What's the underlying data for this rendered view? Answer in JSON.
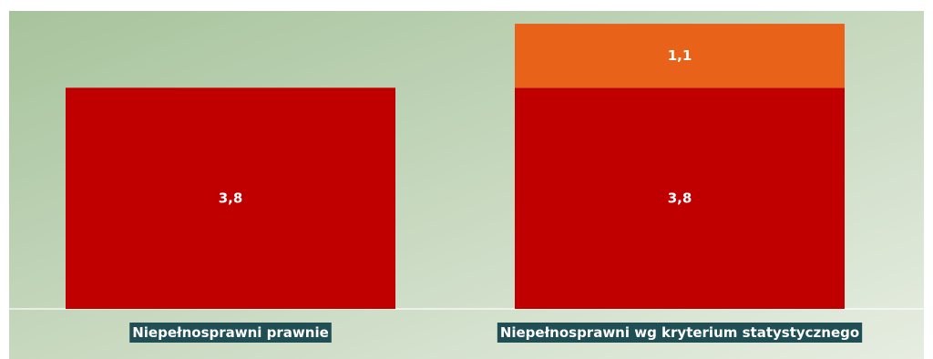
{
  "chart_data": {
    "type": "bar",
    "stacked": true,
    "categories": [
      "Niepełnosprawni prawnie",
      "Niepełnosprawni wg kryterium statystycznego"
    ],
    "series": [
      {
        "values": [
          3.8,
          3.8
        ],
        "labels": [
          "3,8",
          "3,8"
        ],
        "color": "#c00000"
      },
      {
        "values": [
          null,
          1.1
        ],
        "labels": [
          "",
          "1,1"
        ],
        "color": "#e8621a"
      }
    ],
    "ylim": [
      0,
      5.12
    ],
    "grid": false,
    "legend": false,
    "title": "",
    "xlabel": "",
    "ylabel": ""
  },
  "colors": {
    "background_start": "#a7c39c",
    "background_end": "#e6ede1",
    "label_background": "#1f4f54",
    "value_text": "#ffffff"
  }
}
